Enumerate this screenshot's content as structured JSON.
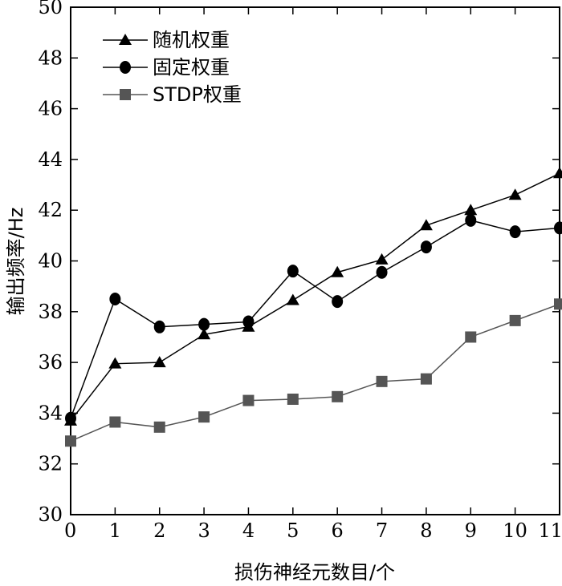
{
  "chart_data": {
    "type": "line",
    "xlabel": "损伤神经元数目/个",
    "ylabel": "输出频率/Hz",
    "xlim": [
      0,
      11
    ],
    "ylim": [
      30,
      50
    ],
    "xticks": [
      0,
      1,
      2,
      3,
      4,
      5,
      6,
      7,
      8,
      9,
      10,
      11
    ],
    "yticks": [
      30,
      32,
      34,
      36,
      38,
      40,
      42,
      44,
      46,
      48,
      50
    ],
    "x": [
      0,
      1,
      2,
      3,
      4,
      5,
      6,
      7,
      8,
      9,
      10,
      11
    ],
    "grid": false,
    "legend_position": "top-left",
    "series": [
      {
        "name": "随机权重",
        "marker": "triangle",
        "color": "#000000",
        "values": [
          33.7,
          35.95,
          36.0,
          37.1,
          37.4,
          38.45,
          39.55,
          40.05,
          41.4,
          42.0,
          42.6,
          43.45
        ]
      },
      {
        "name": "固定权重",
        "marker": "circle",
        "color": "#000000",
        "values": [
          33.8,
          38.5,
          37.4,
          37.5,
          37.6,
          39.6,
          38.4,
          39.55,
          40.55,
          41.6,
          41.15,
          41.3
        ]
      },
      {
        "name": "STDP权重",
        "marker": "square",
        "color": "#555555",
        "values": [
          32.9,
          33.65,
          33.45,
          33.85,
          34.5,
          34.55,
          34.65,
          35.25,
          35.35,
          37.0,
          37.65,
          38.3
        ]
      }
    ]
  }
}
